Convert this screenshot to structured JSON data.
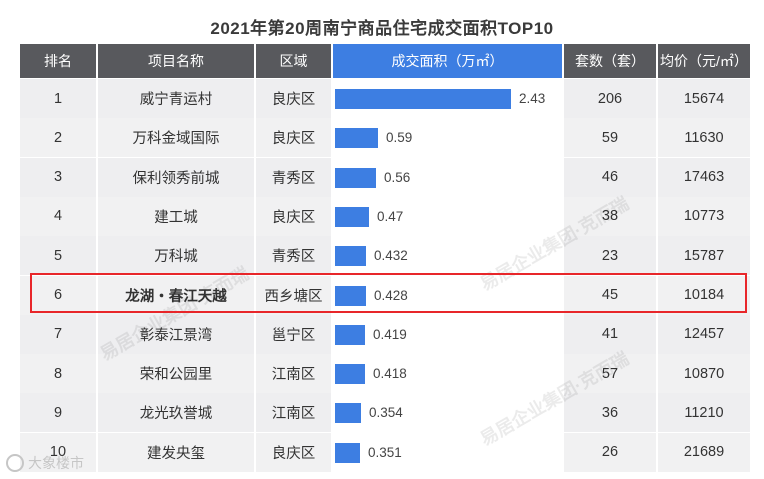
{
  "title": "2021年第20周南宁商品住宅成交面积TOP10",
  "headers": {
    "rank": "排名",
    "project": "项目名称",
    "district": "区域",
    "area": "成交面积（万㎡）",
    "units": "套数（套）",
    "price": "均价（元/㎡）"
  },
  "rows": [
    {
      "rank": "1",
      "project": "威宁青运村",
      "district": "良庆区",
      "area": "2.43",
      "units": "206",
      "price": "15674"
    },
    {
      "rank": "2",
      "project": "万科金域国际",
      "district": "良庆区",
      "area": "0.59",
      "units": "59",
      "price": "11630"
    },
    {
      "rank": "3",
      "project": "保利领秀前城",
      "district": "青秀区",
      "area": "0.56",
      "units": "46",
      "price": "17463"
    },
    {
      "rank": "4",
      "project": "建工城",
      "district": "良庆区",
      "area": "0.47",
      "units": "38",
      "price": "10773"
    },
    {
      "rank": "5",
      "project": "万科城",
      "district": "青秀区",
      "area": "0.432",
      "units": "23",
      "price": "15787"
    },
    {
      "rank": "6",
      "project": "龙湖・春江天越",
      "district": "西乡塘区",
      "area": "0.428",
      "units": "45",
      "price": "10184"
    },
    {
      "rank": "7",
      "project": "彰泰江景湾",
      "district": "邕宁区",
      "area": "0.419",
      "units": "41",
      "price": "12457"
    },
    {
      "rank": "8",
      "project": "荣和公园里",
      "district": "江南区",
      "area": "0.418",
      "units": "57",
      "price": "10870"
    },
    {
      "rank": "9",
      "project": "龙光玖誉城",
      "district": "江南区",
      "area": "0.354",
      "units": "36",
      "price": "11210"
    },
    {
      "rank": "10",
      "project": "建发央玺",
      "district": "良庆区",
      "area": "0.351",
      "units": "26",
      "price": "21689"
    }
  ],
  "chart_data": {
    "type": "bar",
    "title": "2021年第20周南宁商品住宅成交面积TOP10",
    "categories": [
      "威宁青运村",
      "万科金域国际",
      "保利领秀前城",
      "建工城",
      "万科城",
      "龙湖・春江天越",
      "彰泰江景湾",
      "荣和公园里",
      "龙光玖誉城",
      "建发央玺"
    ],
    "values": [
      2.43,
      0.59,
      0.56,
      0.47,
      0.432,
      0.428,
      0.419,
      0.418,
      0.354,
      0.351
    ],
    "xlabel": "",
    "ylabel": "成交面积（万㎡）",
    "orientation": "horizontal",
    "highlighted_category": "龙湖・春江天越",
    "colors": {
      "bar": "#3d7ee2",
      "highlight_border": "#e8262a",
      "header": "#58595d"
    }
  },
  "watermark_text": "易居企业集团·克而瑞",
  "corner_logo_text": "大象楼市"
}
